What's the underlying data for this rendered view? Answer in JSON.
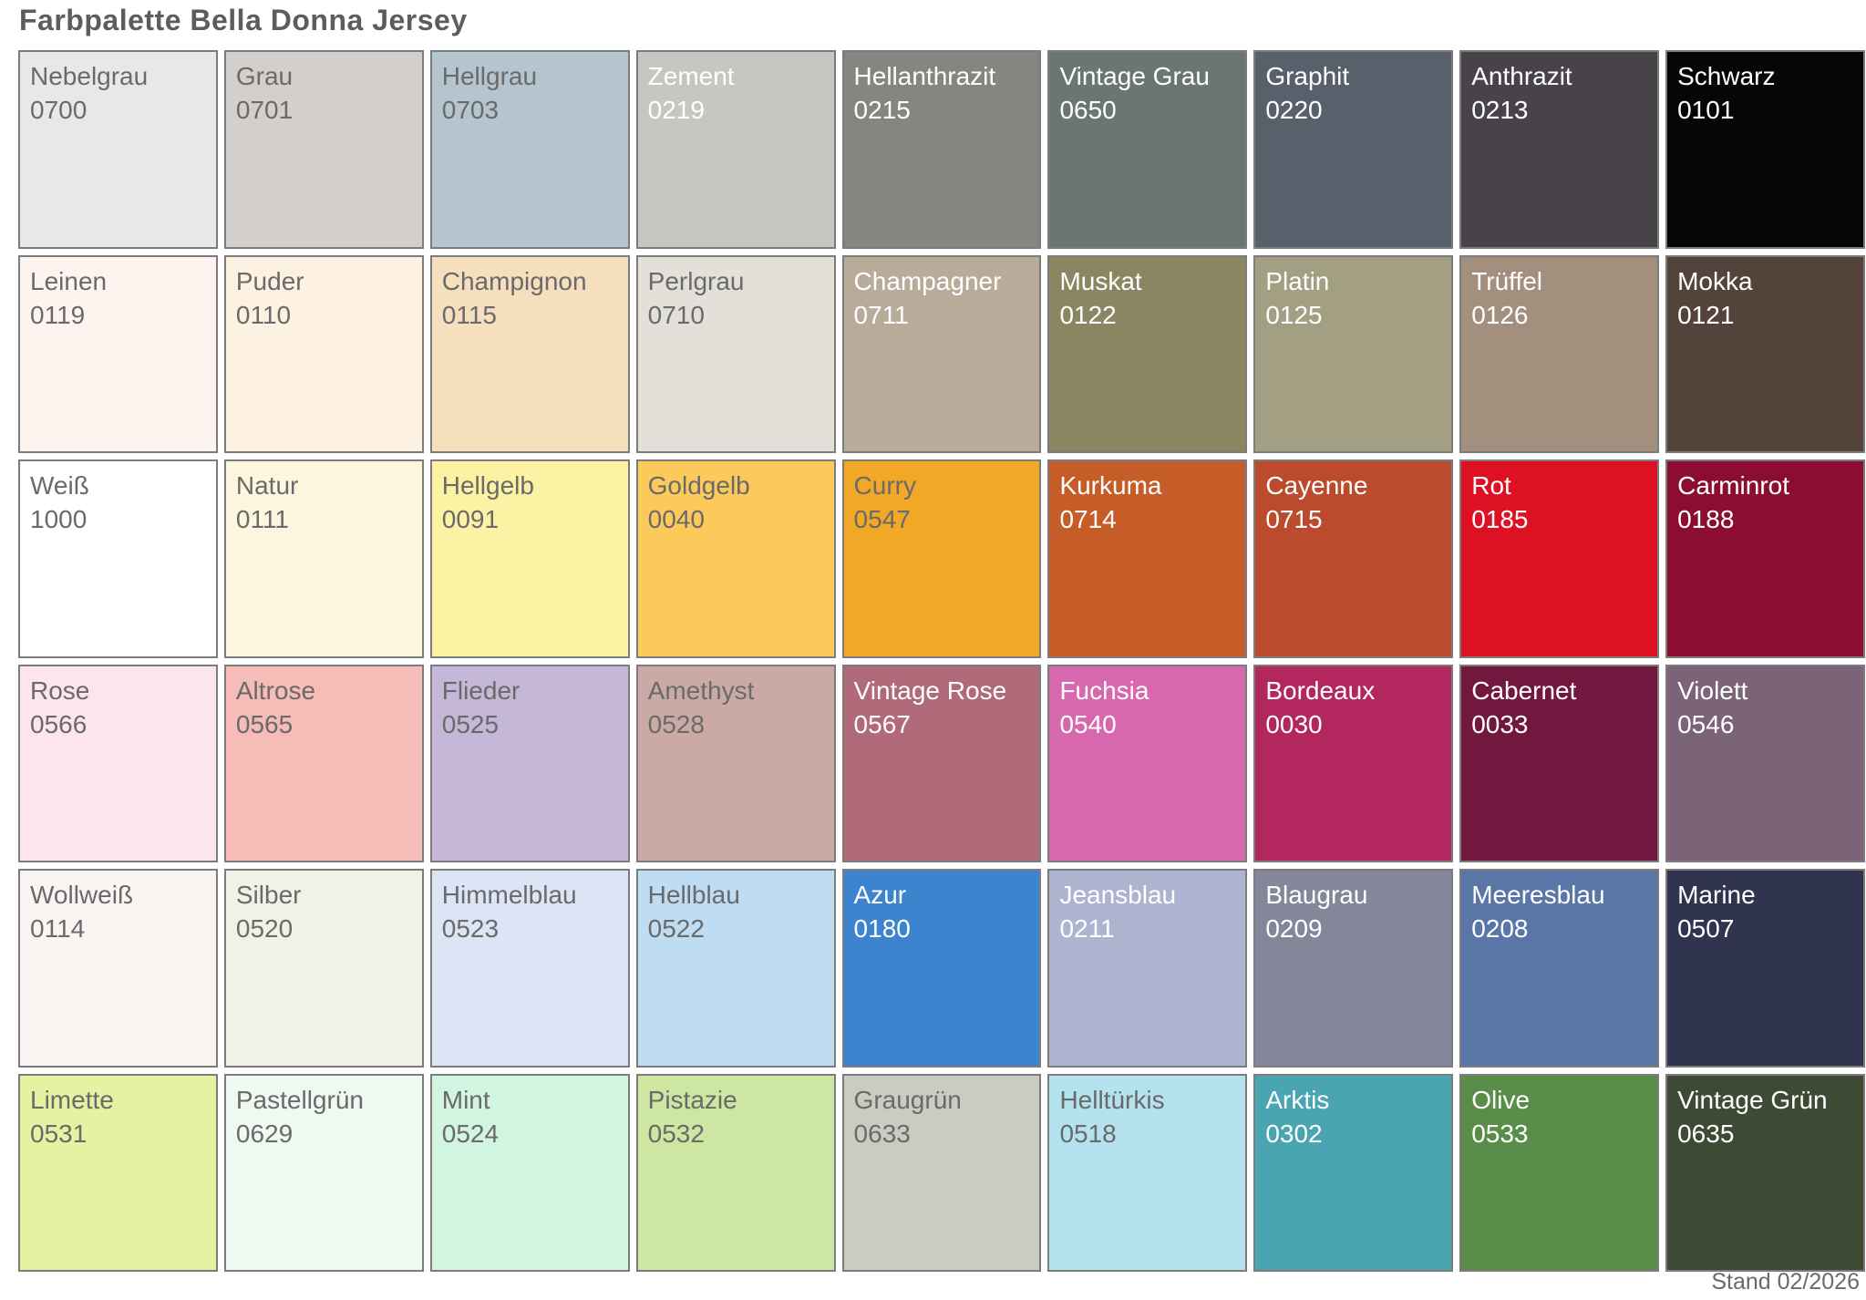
{
  "title": "Farbpalette Bella Donna Jersey",
  "footer": "Stand 02/2026",
  "grid": {
    "columns": 9,
    "rows": 6
  },
  "swatches": [
    {
      "name": "Nebelgrau",
      "code": "0700",
      "color": "#e8e8e6",
      "text": "dark"
    },
    {
      "name": "Grau",
      "code": "0701",
      "color": "#d3cfcc",
      "text": "dark"
    },
    {
      "name": "Hellgrau",
      "code": "0703",
      "color": "#b5c5cf",
      "text": "dark"
    },
    {
      "name": "Zement",
      "code": "0219",
      "color": "#c6c6c2",
      "text": "light"
    },
    {
      "name": "Hellanthrazit",
      "code": "0215",
      "color": "#868581",
      "text": "light"
    },
    {
      "name": "Vintage Grau",
      "code": "0650",
      "color": "#6a7673",
      "text": "light"
    },
    {
      "name": "Graphit",
      "code": "0220",
      "color": "#57606b",
      "text": "light"
    },
    {
      "name": "Anthrazit",
      "code": "0213",
      "color": "#474349",
      "text": "light"
    },
    {
      "name": "Schwarz",
      "code": "0101",
      "color": "#070508",
      "text": "light"
    },
    {
      "name": "Leinen",
      "code": "0119",
      "color": "#fdf4ef",
      "text": "dark"
    },
    {
      "name": "Puder",
      "code": "0110",
      "color": "#fdf2e1",
      "text": "dark"
    },
    {
      "name": "Champignon",
      "code": "0115",
      "color": "#f5dfbc",
      "text": "dark"
    },
    {
      "name": "Perlgrau",
      "code": "0710",
      "color": "#e2e0d9",
      "text": "dark"
    },
    {
      "name": "Champagner",
      "code": "0711",
      "color": "#b8ab9a",
      "text": "light"
    },
    {
      "name": "Muskat",
      "code": "0122",
      "color": "#8a8662",
      "text": "light"
    },
    {
      "name": "Platin",
      "code": "0125",
      "color": "#a29f83",
      "text": "light"
    },
    {
      "name": "Trüffel",
      "code": "0126",
      "color": "#a28f7d",
      "text": "light"
    },
    {
      "name": "Mokka",
      "code": "0121",
      "color": "#53433b",
      "text": "light"
    },
    {
      "name": "Weiß",
      "code": "1000",
      "color": "#ffffff",
      "text": "dark"
    },
    {
      "name": "Natur",
      "code": "0111",
      "color": "#fdf6df",
      "text": "dark"
    },
    {
      "name": "Hellgelb",
      "code": "0091",
      "color": "#fcf2a4",
      "text": "dark"
    },
    {
      "name": "Goldgelb",
      "code": "0040",
      "color": "#fcc95b",
      "text": "dark"
    },
    {
      "name": "Curry",
      "code": "0547",
      "color": "#f0a826",
      "text": "dark"
    },
    {
      "name": "Kurkuma",
      "code": "0714",
      "color": "#c65c28",
      "text": "light"
    },
    {
      "name": "Cayenne",
      "code": "0715",
      "color": "#bc4a2d",
      "text": "light"
    },
    {
      "name": "Rot",
      "code": "0185",
      "color": "#de1023",
      "text": "light"
    },
    {
      "name": "Carminrot",
      "code": "0188",
      "color": "#8b0e32",
      "text": "light"
    },
    {
      "name": "Rose",
      "code": "0566",
      "color": "#fde5ec",
      "text": "dark"
    },
    {
      "name": "Altrose",
      "code": "0565",
      "color": "#f6bcb8",
      "text": "dark"
    },
    {
      "name": "Flieder",
      "code": "0525",
      "color": "#c5b7d7",
      "text": "dark"
    },
    {
      "name": "Amethyst",
      "code": "0528",
      "color": "#cbaaa5",
      "text": "dark"
    },
    {
      "name": "Vintage Rose",
      "code": "0567",
      "color": "#b06a7a",
      "text": "light"
    },
    {
      "name": "Fuchsia",
      "code": "0540",
      "color": "#d868ae",
      "text": "light"
    },
    {
      "name": "Bordeaux",
      "code": "0030",
      "color": "#b2275e",
      "text": "light"
    },
    {
      "name": "Cabernet",
      "code": "0033",
      "color": "#72173e",
      "text": "light"
    },
    {
      "name": "Violett",
      "code": "0546",
      "color": "#7b6478",
      "text": "light"
    },
    {
      "name": "Wollweiß",
      "code": "0114",
      "color": "#faf4f3",
      "text": "dark"
    },
    {
      "name": "Silber",
      "code": "0520",
      "color": "#f0f2e5",
      "text": "dark"
    },
    {
      "name": "Himmelblau",
      "code": "0523",
      "color": "#dce5f5",
      "text": "dark"
    },
    {
      "name": "Hellblau",
      "code": "0522",
      "color": "#bedcf2",
      "text": "dark"
    },
    {
      "name": "Azur",
      "code": "0180",
      "color": "#3c84ce",
      "text": "light"
    },
    {
      "name": "Jeansblau",
      "code": "0211",
      "color": "#adb4cf",
      "text": "light"
    },
    {
      "name": "Blaugrau",
      "code": "0209",
      "color": "#84879a",
      "text": "light"
    },
    {
      "name": "Meeresblau",
      "code": "0208",
      "color": "#5a76a6",
      "text": "light"
    },
    {
      "name": "Marine",
      "code": "0507",
      "color": "#31344e",
      "text": "light"
    },
    {
      "name": "Limette",
      "code": "0531",
      "color": "#e6f2a1",
      "text": "dark"
    },
    {
      "name": "Pastellgrün",
      "code": "0629",
      "color": "#eef9f1",
      "text": "dark"
    },
    {
      "name": "Mint",
      "code": "0524",
      "color": "#d2f5e1",
      "text": "dark"
    },
    {
      "name": "Pistazie",
      "code": "0532",
      "color": "#cde6a1",
      "text": "dark"
    },
    {
      "name": "Graugrün",
      "code": "0633",
      "color": "#c9ccc0",
      "text": "dark"
    },
    {
      "name": "Helltürkis",
      "code": "0518",
      "color": "#b4e2ee",
      "text": "dark"
    },
    {
      "name": "Arktis",
      "code": "0302",
      "color": "#49a5b1",
      "text": "light"
    },
    {
      "name": "Olive",
      "code": "0533",
      "color": "#598d49",
      "text": "light"
    },
    {
      "name": "Vintage Grün",
      "code": "0635",
      "color": "#3d4b35",
      "text": "light"
    }
  ]
}
